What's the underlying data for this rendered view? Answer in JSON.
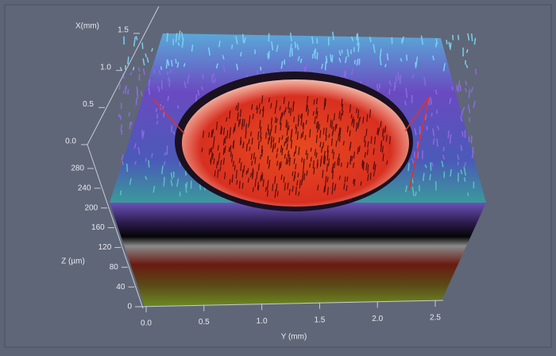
{
  "chart_data": {
    "type": "surface",
    "x_label": "X(mm)",
    "y_label": "Y (mm)",
    "z_label": "Z (µm)",
    "xlim": [
      0,
      1.5
    ],
    "xticks": [
      {
        "value": 0,
        "label": "0.0"
      },
      0.5,
      {
        "value": 1,
        "label": "1.0"
      },
      1.5
    ],
    "ylim": [
      0,
      2.5
    ],
    "yticks": [
      {
        "value": 0,
        "label": "0.0"
      },
      0.5,
      {
        "value": 1,
        "label": "1.0"
      },
      1.5,
      {
        "value": 2,
        "label": "2.0"
      },
      2.5
    ],
    "zlim": [
      0,
      280
    ],
    "zticks": [
      0,
      40,
      80,
      120,
      160,
      200,
      240,
      280
    ]
  }
}
